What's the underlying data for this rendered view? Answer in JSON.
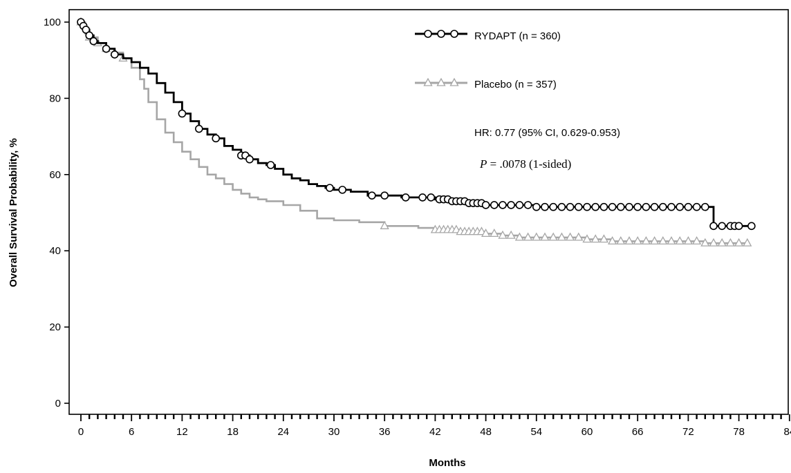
{
  "chart_data": {
    "type": "line",
    "title": "",
    "xlabel": "Months",
    "ylabel": "Overall Survival Probability, %",
    "xlim": [
      0,
      84
    ],
    "ylim": [
      0,
      100
    ],
    "xticks": [
      0,
      6,
      12,
      18,
      24,
      30,
      36,
      42,
      48,
      54,
      60,
      66,
      72,
      78,
      84
    ],
    "xtick_labels": [
      "0",
      "6",
      "12",
      "18",
      "24",
      "30",
      "36",
      "42",
      "48",
      "54",
      "60",
      "66",
      "72",
      "78",
      "84"
    ],
    "xminor_step": 1,
    "yticks": [
      0,
      20,
      40,
      60,
      80,
      100
    ],
    "ytick_labels": [
      "0",
      "20",
      "40",
      "60",
      "80",
      "100"
    ],
    "grid": false,
    "legend_position": "top-right",
    "series": [
      {
        "name": "RYDAPT (n = 360)",
        "color": "#000000",
        "marker": "circle",
        "x": [
          0,
          0.3,
          0.6,
          1,
          1.5,
          2,
          3,
          4,
          5,
          6,
          7,
          8,
          9,
          10,
          11,
          12,
          13,
          14,
          15,
          16,
          17,
          18,
          19,
          20,
          21,
          22,
          23,
          24,
          25,
          26,
          27,
          28,
          29,
          30,
          32,
          34,
          36,
          38,
          40,
          42,
          44,
          46,
          48,
          50,
          52,
          54,
          56,
          58,
          60,
          62,
          64,
          66,
          68,
          70,
          72,
          74,
          74.5,
          75,
          76,
          78,
          79.5
        ],
        "y": [
          100,
          99,
          98,
          96.5,
          95,
          94.5,
          93,
          91.5,
          90.5,
          89.5,
          88,
          86.5,
          84,
          81.5,
          79,
          76,
          74,
          72,
          70.5,
          69.5,
          67.5,
          66.5,
          65,
          64,
          63,
          62.5,
          61.5,
          60,
          59,
          58.5,
          57.5,
          57,
          56.5,
          56,
          55.5,
          54.5,
          54.5,
          54,
          54,
          53.5,
          53,
          52.5,
          52,
          52,
          52,
          51.5,
          51.5,
          51.5,
          51.5,
          51.5,
          51.5,
          51.5,
          51.5,
          51.5,
          51.5,
          51.5,
          51.5,
          46.5,
          46.5,
          46.5,
          46.5
        ],
        "censor_x": [
          0,
          0.3,
          0.6,
          1,
          1.5,
          3,
          4,
          12,
          14,
          16,
          19,
          19.5,
          20,
          22.5,
          29.5,
          31,
          34.5,
          36,
          38.5,
          40.5,
          41.5,
          42.5,
          43,
          43.5,
          44,
          44.5,
          45,
          45.5,
          46,
          46.5,
          47,
          47.5,
          48,
          49,
          50,
          51,
          52,
          53,
          54,
          55,
          56,
          57,
          58,
          59,
          60,
          61,
          62,
          63,
          64,
          65,
          66,
          67,
          68,
          69,
          70,
          71,
          72,
          73,
          74,
          75,
          76,
          77,
          77.5,
          78,
          79.5
        ]
      },
      {
        "name": "Placebo (n = 357)",
        "color": "#a6a6a6",
        "marker": "triangle",
        "x": [
          0,
          0.5,
          1,
          2,
          3,
          4,
          5,
          6,
          7,
          7.5,
          8,
          9,
          10,
          11,
          12,
          13,
          14,
          15,
          16,
          17,
          18,
          19,
          20,
          21,
          22,
          24,
          26,
          28,
          30,
          33,
          36,
          38,
          40,
          42,
          45,
          48,
          50,
          52,
          55,
          58,
          60,
          63,
          66,
          70,
          74,
          78,
          79
        ],
        "y": [
          100,
          97,
          96,
          94.5,
          93,
          92,
          90.5,
          88,
          85,
          82.5,
          79,
          74.5,
          71,
          68.5,
          66,
          64,
          62,
          60,
          59,
          57.5,
          56,
          55,
          54,
          53.5,
          53,
          52,
          50.5,
          48.5,
          48,
          47.5,
          46.5,
          46.5,
          46,
          45.5,
          45,
          44.5,
          44,
          43.5,
          43.5,
          43.5,
          43,
          42.5,
          42.5,
          42.5,
          42,
          42,
          42
        ],
        "censor_x": [
          0,
          1,
          2,
          3,
          4,
          5,
          36,
          42,
          42.5,
          43,
          43.5,
          44,
          44.5,
          45,
          45.5,
          46,
          46.5,
          47,
          47.5,
          48,
          49,
          50,
          51,
          52,
          53,
          54,
          55,
          56,
          57,
          58,
          59,
          60,
          61,
          62,
          63,
          64,
          65,
          66,
          67,
          68,
          69,
          70,
          71,
          72,
          73,
          74,
          75,
          76,
          77,
          78,
          79
        ]
      }
    ],
    "annotations": [
      "HR: 0.77 (95% CI, 0.629-0.953)",
      "P = .0078 (1-sided)"
    ],
    "annotation_parts": {
      "p_symbol": "P",
      "p_rest": " = .0078 (1-sided)"
    }
  }
}
